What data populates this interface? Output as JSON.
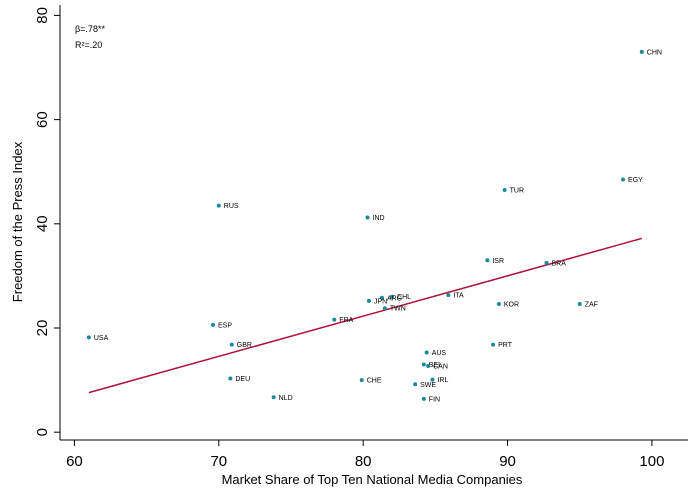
{
  "chart_data": {
    "type": "scatter",
    "xlabel": "Market Share of Top Ten National Media Companies",
    "ylabel": "Freedom of the Press Index",
    "xlim": [
      59,
      102.5
    ],
    "ylim": [
      -1.5,
      82
    ],
    "xticks": [
      60,
      70,
      80,
      90,
      100
    ],
    "yticks": [
      0,
      20,
      40,
      60,
      80
    ],
    "grid": false,
    "annotations": [
      "β=.78**",
      "R²=.20"
    ],
    "point_color": "#1a8a9a",
    "line_color": "#b0113a",
    "fit_line": {
      "x": [
        61,
        99.3
      ],
      "y": [
        7.6,
        37.2
      ]
    },
    "points": [
      {
        "label": "CHN",
        "x": 99.3,
        "y": 73
      },
      {
        "label": "EGY",
        "x": 98,
        "y": 48.5
      },
      {
        "label": "TUR",
        "x": 89.8,
        "y": 46.5
      },
      {
        "label": "RUS",
        "x": 70,
        "y": 43.5
      },
      {
        "label": "IND",
        "x": 80.3,
        "y": 41.2
      },
      {
        "label": "BRA",
        "x": 92.7,
        "y": 32.5
      },
      {
        "label": "ISR",
        "x": 88.6,
        "y": 33
      },
      {
        "label": "CHL",
        "x": 82,
        "y": 26
      },
      {
        "label": "ARG",
        "x": 81.3,
        "y": 25.8
      },
      {
        "label": "JPN",
        "x": 80.4,
        "y": 25.2
      },
      {
        "label": "TWN",
        "x": 81.5,
        "y": 23.8
      },
      {
        "label": "ITA",
        "x": 85.9,
        "y": 26.3
      },
      {
        "label": "KOR",
        "x": 89.4,
        "y": 24.6
      },
      {
        "label": "ZAF",
        "x": 95,
        "y": 24.6
      },
      {
        "label": "FRA",
        "x": 78,
        "y": 21.6
      },
      {
        "label": "ESP",
        "x": 69.6,
        "y": 20.6
      },
      {
        "label": "USA",
        "x": 61,
        "y": 18.2
      },
      {
        "label": "GBR",
        "x": 70.9,
        "y": 16.8
      },
      {
        "label": "PRT",
        "x": 89,
        "y": 16.8
      },
      {
        "label": "AUS",
        "x": 84.4,
        "y": 15.3
      },
      {
        "label": "BEL",
        "x": 84.2,
        "y": 13
      },
      {
        "label": "CAN",
        "x": 84.5,
        "y": 12.7
      },
      {
        "label": "DEU",
        "x": 70.8,
        "y": 10.3
      },
      {
        "label": "CHE",
        "x": 79.9,
        "y": 10
      },
      {
        "label": "IRL",
        "x": 84.8,
        "y": 10.1
      },
      {
        "label": "SWE",
        "x": 83.6,
        "y": 9.2
      },
      {
        "label": "NLD",
        "x": 73.8,
        "y": 6.7
      },
      {
        "label": "FIN",
        "x": 84.2,
        "y": 6.4
      }
    ]
  }
}
